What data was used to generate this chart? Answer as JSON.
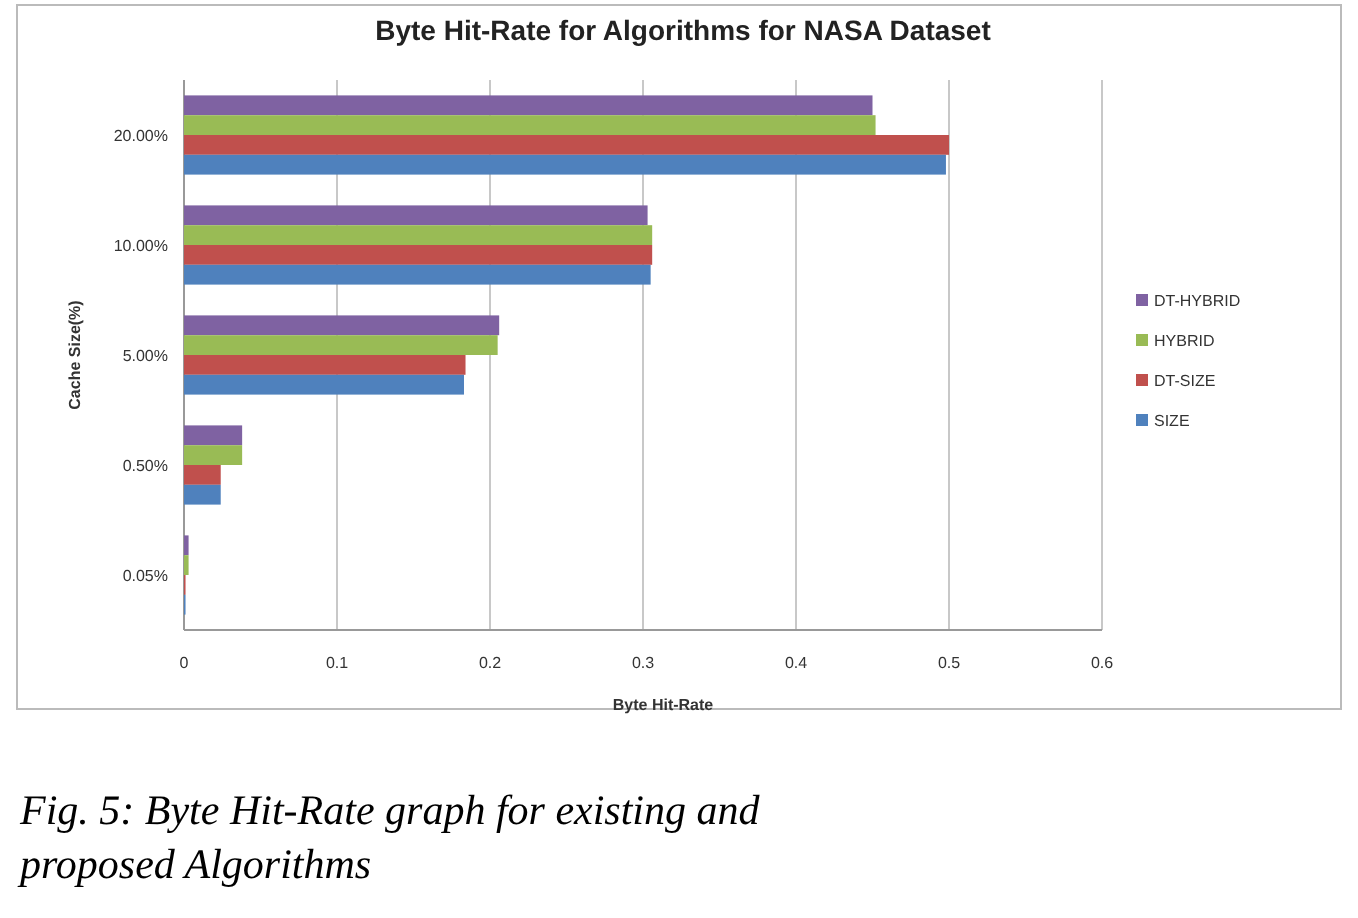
{
  "chart_data": {
    "type": "bar",
    "orientation": "horizontal",
    "title": "Byte Hit-Rate for Algorithms for NASA Dataset",
    "xlabel": "Byte Hit-Rate",
    "ylabel": "Cache Size(%)",
    "categories": [
      "20.00%",
      "10.00%",
      "5.00%",
      "0.50%",
      "0.05%"
    ],
    "series": [
      {
        "name": "DT-HYBRID",
        "color": "#7f62a2",
        "values": [
          0.45,
          0.303,
          0.206,
          0.038,
          0.003
        ]
      },
      {
        "name": "HYBRID",
        "color": "#99bb55",
        "values": [
          0.452,
          0.306,
          0.205,
          0.038,
          0.003
        ]
      },
      {
        "name": "DT-SIZE",
        "color": "#c0504d",
        "values": [
          0.5,
          0.306,
          0.184,
          0.024,
          0.001
        ]
      },
      {
        "name": "SIZE",
        "color": "#4f81bd",
        "values": [
          0.498,
          0.305,
          0.183,
          0.024,
          0.001
        ]
      }
    ],
    "xlim": [
      0,
      0.6
    ],
    "xticks": [
      0,
      0.1,
      0.2,
      0.3,
      0.4,
      0.5,
      0.6
    ],
    "grid": "x",
    "legend": "right",
    "annotations": [
      "Fig.  5: Byte Hit-Rate graph  for existing and proposed Algorithms"
    ]
  }
}
